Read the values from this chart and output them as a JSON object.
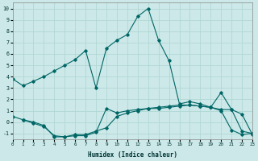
{
  "xlabel": "Humidex (Indice chaleur)",
  "ylabel": "",
  "background_color": "#cce8e8",
  "grid_color": "#b0d8d4",
  "line_color": "#006666",
  "xlim": [
    0,
    23
  ],
  "ylim": [
    -1.5,
    10.5
  ],
  "xticks": [
    0,
    1,
    2,
    3,
    4,
    5,
    6,
    7,
    8,
    9,
    10,
    11,
    12,
    13,
    14,
    15,
    16,
    17,
    18,
    19,
    20,
    21,
    22,
    23
  ],
  "yticks": [
    -1,
    0,
    1,
    2,
    3,
    4,
    5,
    6,
    7,
    8,
    9,
    10
  ],
  "line1_x": [
    0,
    1,
    2,
    3,
    4,
    5,
    6,
    7,
    8,
    9,
    10,
    11,
    12,
    13,
    14,
    15,
    16,
    17,
    18,
    19,
    20,
    21,
    22,
    23
  ],
  "line1_y": [
    3.8,
    3.2,
    3.6,
    4.0,
    4.5,
    5.0,
    5.5,
    6.3,
    3.0,
    6.5,
    7.2,
    7.7,
    9.3,
    10.0,
    7.2,
    5.4,
    1.6,
    1.8,
    1.6,
    1.3,
    2.6,
    1.1,
    0.7,
    -1.1
  ],
  "line2_x": [
    1,
    2,
    3,
    4,
    5,
    6,
    7,
    8,
    9,
    10,
    11,
    12,
    13,
    14,
    15,
    16,
    17,
    18,
    19,
    20,
    21,
    22,
    23
  ],
  "line2_y": [
    0.2,
    -0.1,
    -0.4,
    -1.2,
    -1.3,
    -1.2,
    -1.2,
    -0.9,
    1.2,
    0.8,
    1.0,
    1.1,
    1.2,
    1.2,
    1.3,
    1.4,
    1.5,
    1.4,
    1.3,
    1.1,
    1.1,
    -0.8,
    -1.0
  ],
  "line3_x": [
    0,
    1,
    2,
    3,
    4,
    5,
    6,
    7,
    8,
    9,
    10,
    11,
    12,
    13,
    14,
    15,
    16,
    17,
    18,
    19,
    20,
    21,
    22,
    23
  ],
  "line3_y": [
    0.5,
    0.2,
    0.0,
    -0.3,
    -1.3,
    -1.3,
    -1.1,
    -1.1,
    -0.8,
    -0.5,
    0.5,
    0.8,
    1.0,
    1.2,
    1.3,
    1.4,
    1.5,
    1.5,
    1.4,
    1.3,
    1.0,
    -0.7,
    -1.1,
    -1.0
  ]
}
